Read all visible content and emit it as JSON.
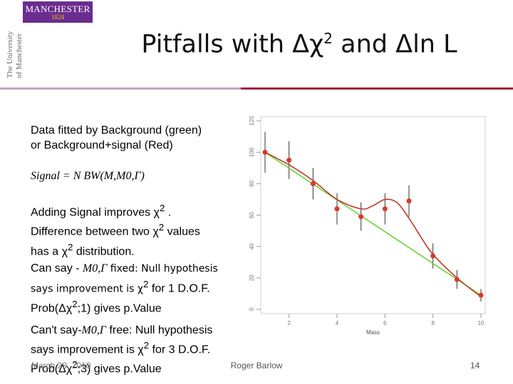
{
  "logo": {
    "name": "MANCHESTER",
    "year": "1824",
    "university_line1": "The University",
    "university_line2": "of Manchester"
  },
  "title": {
    "part1": "Pitfalls with Δχ",
    "sup1": "2",
    "part2": " and Δln L"
  },
  "text": {
    "intro_line1": "Data fitted by Background (green)",
    "intro_line2": "or Background+signal (Red)",
    "formula": "Signal = N BW(M,M0,Γ)",
    "adding_line1": "Adding Signal improves χ",
    "adding_sup": "2",
    "adding_line1_end": " .",
    "adding_line2": "Difference between two χ",
    "adding_line2_sup": "2",
    "adding_line2_end": " values",
    "adding_line3": "has a  χ",
    "adding_line3_sup": "2",
    "adding_line3_end": " distribution.",
    "cansay_prefix": "Can say - ",
    "cansay_vars": "M0,Γ",
    "cansay_mid": " fixed: Null hypothesis",
    "cansay_line2": "says improvement is χ",
    "cansay_line2_sup": "2",
    "cansay_line2_end": " for 1 D.O.F.",
    "cansay_line3": "Prob(Δχ",
    "cansay_line3_sup": "2",
    "cansay_line3_end": ";1) gives p.Value",
    "cant_prefix": "Can't say-",
    "cant_vars": "M0,Γ",
    "cant_mid": " free: Null hypothesis",
    "cant_line2": "says improvement is χ",
    "cant_line2_sup": "2",
    "cant_line2_end": " for 3 D.O.F.",
    "cant_line3": "Prob(Δχ",
    "cant_line3_sup": "2",
    "cant_line3_end": ";3) gives p.Value"
  },
  "footer": {
    "date": "March 29, 2010",
    "author": "Roger Barlow",
    "page": "14"
  },
  "chart_data": {
    "type": "scatter",
    "xlabel": "Mass",
    "ylabel": "",
    "xlim": [
      1,
      10
    ],
    "ylim": [
      0,
      120
    ],
    "xticks": [
      "2",
      "4",
      "6",
      "8",
      "10"
    ],
    "yticks": [
      "0",
      "20",
      "40",
      "60",
      "80",
      "100",
      "120"
    ],
    "points": [
      {
        "x": 1,
        "y": 100,
        "err": 13
      },
      {
        "x": 2,
        "y": 95,
        "err": 12
      },
      {
        "x": 3,
        "y": 80,
        "err": 10
      },
      {
        "x": 4,
        "y": 64,
        "err": 10
      },
      {
        "x": 5,
        "y": 59,
        "err": 9
      },
      {
        "x": 6,
        "y": 64,
        "err": 10
      },
      {
        "x": 7,
        "y": 69,
        "err": 10
      },
      {
        "x": 8,
        "y": 34,
        "err": 8
      },
      {
        "x": 9,
        "y": 19,
        "err": 6
      },
      {
        "x": 10,
        "y": 9,
        "err": 4
      }
    ],
    "series": [
      {
        "x": [
          1,
          10
        ],
        "y": [
          100,
          9
        ]
      },
      {
        "x": [
          1,
          2,
          3,
          4,
          5,
          5.5,
          6,
          6.5,
          7,
          7.5,
          8,
          9,
          10
        ],
        "y": [
          100,
          92,
          82,
          70,
          64,
          66,
          70,
          68,
          58,
          46,
          35,
          20,
          8
        ]
      }
    ],
    "colors": {
      "background": "#6fd13a",
      "signal": "#c0392b",
      "points": "#d63a2a",
      "error_bars": "#333333"
    }
  }
}
